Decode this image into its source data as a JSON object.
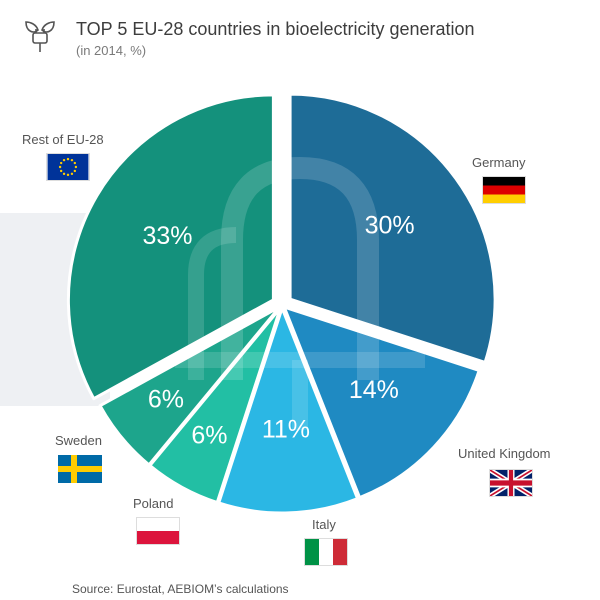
{
  "title": "TOP 5 EU-28 countries in bioelectricity generation",
  "subtitle": "(in 2014, %)",
  "source": "Source: Eurostat, AEBIOM’s calculations",
  "icons": {
    "title": "plug-leaf-icon"
  },
  "colors": {
    "germany": "#1e6c97",
    "united_kingdom": "#1f8ac2",
    "italy": "#2bb7e4",
    "poland": "#22bfa4",
    "sweden": "#1da58c",
    "rest": "#14917c"
  },
  "chart_data": {
    "type": "pie",
    "title": "TOP 5 EU-28 countries in bioelectricity generation",
    "subtitle": "(in 2014, %)",
    "categories": [
      "Germany",
      "United Kingdom",
      "Italy",
      "Poland",
      "Sweden",
      "Rest of EU-28"
    ],
    "values": [
      30,
      14,
      11,
      6,
      6,
      33
    ],
    "value_labels": [
      "30%",
      "14%",
      "11%",
      "6%",
      "6%",
      "33%"
    ],
    "legend": "labels-beside-slices-with-flags"
  }
}
